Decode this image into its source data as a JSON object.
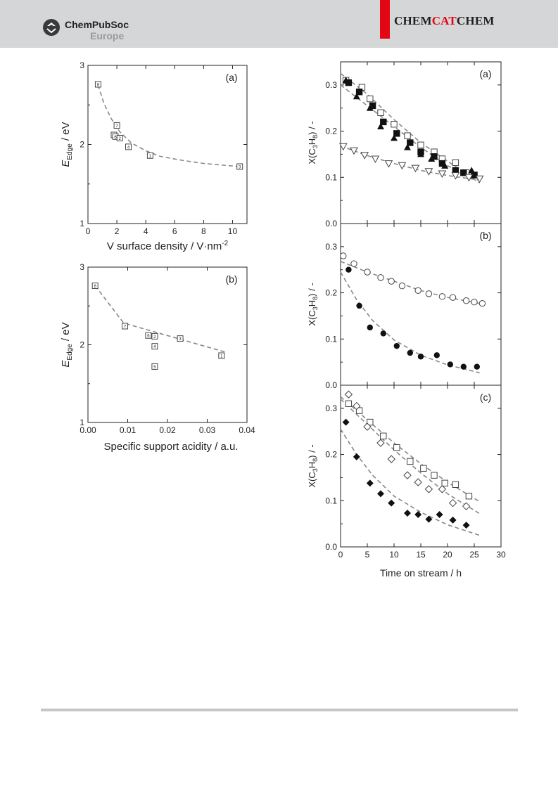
{
  "header": {
    "publisher_name": "ChemPubSoc",
    "publisher_region": "Europe",
    "journal_part1": "CHEM",
    "journal_part2": "CAT",
    "journal_part3": "CHEM",
    "colors": {
      "header_bg": "#d5d6d8",
      "accent_red": "#e30613",
      "region_gray": "#9a9a9a"
    }
  },
  "chart_data": [
    {
      "type": "scatter",
      "panel": "(a)",
      "ylabel": "E_Edge / eV",
      "xlabel": "V surface density / V·nm^-2",
      "xlim": [
        0,
        11
      ],
      "ylim": [
        1,
        3
      ],
      "xticks": [
        0,
        2,
        4,
        6,
        8,
        10
      ],
      "yticks": [
        1,
        2,
        3
      ],
      "points": [
        {
          "x": 0.7,
          "y": 2.76,
          "label": "8"
        },
        {
          "x": 1.8,
          "y": 2.12,
          "label": "5"
        },
        {
          "x": 1.9,
          "y": 2.1,
          "label": "6"
        },
        {
          "x": 2.0,
          "y": 2.24,
          "label": "7"
        },
        {
          "x": 2.2,
          "y": 2.08,
          "label": "2"
        },
        {
          "x": 2.8,
          "y": 1.97,
          "label": "4"
        },
        {
          "x": 4.3,
          "y": 1.86,
          "label": "1"
        },
        {
          "x": 10.5,
          "y": 1.72,
          "label": "3"
        }
      ],
      "fit": [
        [
          0.7,
          2.75
        ],
        [
          1.1,
          2.52
        ],
        [
          1.6,
          2.33
        ],
        [
          2.2,
          2.16
        ],
        [
          3.0,
          2.02
        ],
        [
          4.0,
          1.92
        ],
        [
          5.0,
          1.85
        ],
        [
          6.5,
          1.8
        ],
        [
          8.0,
          1.76
        ],
        [
          10.5,
          1.72
        ]
      ]
    },
    {
      "type": "scatter",
      "panel": "(b)",
      "ylabel": "E_Edge / eV",
      "xlabel": "Specific support acidity / a.u.",
      "xlim": [
        0,
        0.04
      ],
      "ylim": [
        1,
        3
      ],
      "xticks": [
        0.0,
        0.01,
        0.02,
        0.03,
        0.04
      ],
      "yticks": [
        1,
        2,
        3
      ],
      "points": [
        {
          "x": 0.0018,
          "y": 2.76,
          "label": "8"
        },
        {
          "x": 0.0093,
          "y": 2.24,
          "label": "7"
        },
        {
          "x": 0.0152,
          "y": 2.12,
          "label": "6"
        },
        {
          "x": 0.0168,
          "y": 2.11,
          "label": "2"
        },
        {
          "x": 0.0168,
          "y": 1.98,
          "label": "4"
        },
        {
          "x": 0.0168,
          "y": 1.72,
          "label": "5"
        },
        {
          "x": 0.0232,
          "y": 2.08,
          "label": "3"
        },
        {
          "x": 0.0336,
          "y": 1.86,
          "label": "1"
        }
      ],
      "fit": [
        [
          0.0018,
          2.76
        ],
        [
          0.009,
          2.28
        ],
        [
          0.035,
          1.9
        ]
      ]
    },
    {
      "type": "scatter",
      "panel": "(a)",
      "ylabel": "X(C3H8) / -",
      "xlim": [
        0,
        30
      ],
      "ylim": [
        0,
        0.35
      ],
      "yticks": [
        0.0,
        0.1,
        0.2,
        0.3
      ],
      "series": [
        {
          "marker": "open-square",
          "points": [
            [
              1,
              0.31
            ],
            [
              4,
              0.295
            ],
            [
              5.5,
              0.27
            ],
            [
              7.5,
              0.24
            ],
            [
              10,
              0.215
            ],
            [
              12.5,
              0.19
            ],
            [
              15,
              0.17
            ],
            [
              17.5,
              0.155
            ],
            [
              19,
              0.14
            ],
            [
              21.5,
              0.132
            ],
            [
              23.5,
              0.11
            ],
            [
              25,
              0.105
            ]
          ]
        },
        {
          "marker": "filled-square",
          "points": [
            [
              1.5,
              0.305
            ],
            [
              3.5,
              0.285
            ],
            [
              6,
              0.255
            ],
            [
              8,
              0.22
            ],
            [
              10.5,
              0.195
            ],
            [
              13,
              0.175
            ],
            [
              15,
              0.155
            ],
            [
              17.5,
              0.145
            ],
            [
              19,
              0.13
            ],
            [
              21.5,
              0.115
            ],
            [
              23,
              0.11
            ],
            [
              25,
              0.105
            ]
          ]
        },
        {
          "marker": "filled-triangle",
          "points": [
            [
              1,
              0.31
            ],
            [
              3,
              0.275
            ],
            [
              5.5,
              0.25
            ],
            [
              7.5,
              0.21
            ],
            [
              10,
              0.185
            ],
            [
              12.5,
              0.165
            ],
            [
              15,
              0.15
            ],
            [
              17,
              0.14
            ],
            [
              19.5,
              0.125
            ],
            [
              21.5,
              0.115
            ],
            [
              24.5,
              0.115
            ]
          ]
        },
        {
          "marker": "open-triangle-down",
          "points": [
            [
              0.5,
              0.167
            ],
            [
              2.5,
              0.158
            ],
            [
              4.5,
              0.148
            ],
            [
              6.5,
              0.14
            ],
            [
              9,
              0.13
            ],
            [
              11.5,
              0.126
            ],
            [
              14,
              0.12
            ],
            [
              16.5,
              0.113
            ],
            [
              19,
              0.108
            ],
            [
              21.5,
              0.104
            ],
            [
              24,
              0.1
            ],
            [
              26,
              0.097
            ]
          ]
        }
      ],
      "fits": [
        [
          [
            0,
            0.325
          ],
          [
            5,
            0.28
          ],
          [
            10,
            0.225
          ],
          [
            15,
            0.175
          ],
          [
            20,
            0.135
          ],
          [
            26,
            0.088
          ]
        ],
        [
          [
            0,
            0.3
          ],
          [
            5,
            0.255
          ],
          [
            10,
            0.21
          ],
          [
            15,
            0.165
          ],
          [
            20,
            0.125
          ],
          [
            26,
            0.098
          ]
        ],
        [
          [
            0,
            0.168
          ],
          [
            5,
            0.147
          ],
          [
            10,
            0.13
          ],
          [
            15,
            0.115
          ],
          [
            20,
            0.104
          ],
          [
            26,
            0.094
          ]
        ]
      ]
    },
    {
      "type": "scatter",
      "panel": "(b)",
      "ylabel": "X(C3H8) / -",
      "xlim": [
        0,
        30
      ],
      "ylim": [
        0,
        0.35
      ],
      "yticks": [
        0.0,
        0.1,
        0.2,
        0.3
      ],
      "series": [
        {
          "marker": "open-circle",
          "points": [
            [
              0.5,
              0.28
            ],
            [
              2.5,
              0.263
            ],
            [
              5,
              0.245
            ],
            [
              7.5,
              0.233
            ],
            [
              9.5,
              0.225
            ],
            [
              11.5,
              0.215
            ],
            [
              14.5,
              0.205
            ],
            [
              16.5,
              0.198
            ],
            [
              19,
              0.192
            ],
            [
              21,
              0.19
            ],
            [
              23.5,
              0.183
            ],
            [
              25,
              0.18
            ],
            [
              26.5,
              0.177
            ]
          ]
        },
        {
          "marker": "filled-circle",
          "points": [
            [
              1.5,
              0.25
            ],
            [
              3.5,
              0.172
            ],
            [
              5.5,
              0.125
            ],
            [
              8,
              0.112
            ],
            [
              10.5,
              0.085
            ],
            [
              13,
              0.07
            ],
            [
              15,
              0.062
            ],
            [
              18,
              0.065
            ],
            [
              20.5,
              0.045
            ],
            [
              23,
              0.04
            ],
            [
              25.5,
              0.04
            ]
          ]
        }
      ],
      "fits": [
        [
          [
            0,
            0.268
          ],
          [
            5,
            0.245
          ],
          [
            10,
            0.225
          ],
          [
            15,
            0.205
          ],
          [
            20,
            0.19
          ],
          [
            26,
            0.177
          ]
        ],
        [
          [
            0,
            0.245
          ],
          [
            3,
            0.185
          ],
          [
            6,
            0.14
          ],
          [
            10,
            0.098
          ],
          [
            15,
            0.065
          ],
          [
            20,
            0.044
          ],
          [
            26,
            0.027
          ]
        ]
      ]
    },
    {
      "type": "scatter",
      "panel": "(c)",
      "ylabel": "X(C3H8) / -",
      "xlabel": "Time on stream / h",
      "xlim": [
        0,
        30
      ],
      "ylim": [
        0,
        0.35
      ],
      "xticks": [
        0,
        5,
        10,
        15,
        20,
        25,
        30
      ],
      "yticks": [
        0.0,
        0.1,
        0.2,
        0.3
      ],
      "series": [
        {
          "marker": "open-square",
          "points": [
            [
              1.5,
              0.31
            ],
            [
              3.5,
              0.295
            ],
            [
              5.5,
              0.27
            ],
            [
              8,
              0.24
            ],
            [
              10.5,
              0.215
            ],
            [
              13,
              0.185
            ],
            [
              15.5,
              0.17
            ],
            [
              17.5,
              0.155
            ],
            [
              19.5,
              0.138
            ],
            [
              21.5,
              0.135
            ],
            [
              24,
              0.11
            ]
          ]
        },
        {
          "marker": "open-diamond",
          "points": [
            [
              1.5,
              0.33
            ],
            [
              3,
              0.305
            ],
            [
              5,
              0.26
            ],
            [
              7.5,
              0.225
            ],
            [
              9.5,
              0.19
            ],
            [
              12.5,
              0.155
            ],
            [
              14.5,
              0.14
            ],
            [
              16.5,
              0.125
            ],
            [
              19,
              0.125
            ],
            [
              21,
              0.095
            ],
            [
              23.5,
              0.088
            ]
          ]
        },
        {
          "marker": "filled-diamond",
          "points": [
            [
              1,
              0.27
            ],
            [
              3,
              0.195
            ],
            [
              5.5,
              0.138
            ],
            [
              7.5,
              0.115
            ],
            [
              9.5,
              0.095
            ],
            [
              12.5,
              0.073
            ],
            [
              14.5,
              0.07
            ],
            [
              16.5,
              0.06
            ],
            [
              18.5,
              0.07
            ],
            [
              21,
              0.058
            ],
            [
              23.5,
              0.047
            ]
          ]
        }
      ],
      "fits": [
        [
          [
            0,
            0.325
          ],
          [
            5,
            0.275
          ],
          [
            10,
            0.225
          ],
          [
            15,
            0.18
          ],
          [
            20,
            0.14
          ],
          [
            26,
            0.098
          ]
        ],
        [
          [
            0,
            0.32
          ],
          [
            5,
            0.265
          ],
          [
            10,
            0.21
          ],
          [
            15,
            0.16
          ],
          [
            20,
            0.115
          ],
          [
            26,
            0.072
          ]
        ],
        [
          [
            0,
            0.255
          ],
          [
            3,
            0.2
          ],
          [
            6,
            0.155
          ],
          [
            10,
            0.11
          ],
          [
            15,
            0.075
          ],
          [
            20,
            0.048
          ],
          [
            26,
            0.025
          ]
        ]
      ]
    }
  ]
}
